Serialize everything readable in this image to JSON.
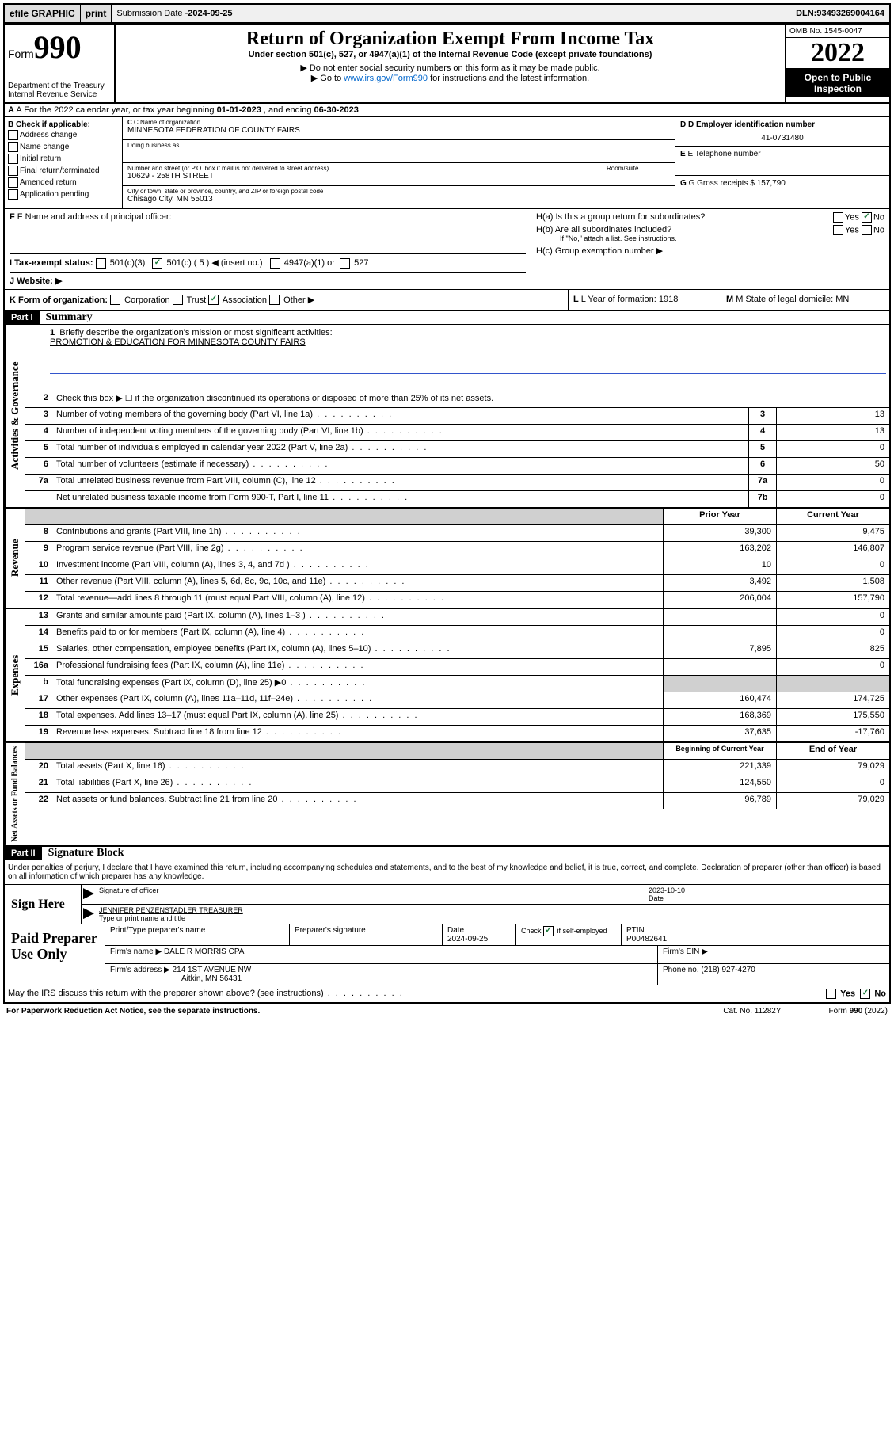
{
  "topbar": {
    "efile": "efile GRAPHIC",
    "print": "print",
    "sub_label": "Submission Date - ",
    "sub_date": "2024-09-25",
    "dln_label": "DLN: ",
    "dln": "93493269004164"
  },
  "header": {
    "form_word": "Form",
    "form_num": "990",
    "title": "Return of Organization Exempt From Income Tax",
    "sub1": "Under section 501(c), 527, or 4947(a)(1) of the Internal Revenue Code (except private foundations)",
    "sub2": "▶ Do not enter social security numbers on this form as it may be made public.",
    "sub3_pre": "▶ Go to ",
    "sub3_link": "www.irs.gov/Form990",
    "sub3_post": " for instructions and the latest information.",
    "omb": "OMB No. 1545-0047",
    "year": "2022",
    "open": "Open to Public Inspection",
    "dept": "Department of the Treasury",
    "irs": "Internal Revenue Service"
  },
  "sectionA": {
    "a_label": "A For the 2022 calendar year, or tax year beginning ",
    "a_begin": "01-01-2023",
    "a_mid": " , and ending ",
    "a_end": "06-30-2023",
    "b_label": "B Check if applicable:",
    "b_opts": [
      "Address change",
      "Name change",
      "Initial return",
      "Final return/terminated",
      "Amended return",
      "Application pending"
    ],
    "c_name_label": "C Name of organization",
    "c_name": "MINNESOTA FEDERATION OF COUNTY FAIRS",
    "c_dba": "Doing business as",
    "c_addr_label": "Number and street (or P.O. box if mail is not delivered to street address)",
    "c_room": "Room/suite",
    "c_addr": "10629 - 258TH STREET",
    "c_city_label": "City or town, state or province, country, and ZIP or foreign postal code",
    "c_city": "Chisago City, MN  55013",
    "d_label": "D Employer identification number",
    "d_ein": "41-0731480",
    "e_label": "E Telephone number",
    "g_label": "G Gross receipts $ ",
    "g_val": "157,790",
    "f_label": "F Name and address of principal officer:",
    "ha": "H(a) Is this a group return for subordinates?",
    "hb": "H(b) Are all subordinates included?",
    "hb_note": "If \"No,\" attach a list. See instructions.",
    "hc": "H(c) Group exemption number ▶",
    "yes": "Yes",
    "no": "No",
    "i_label": "I   Tax-exempt status:",
    "i_501c3": "501(c)(3)",
    "i_501c": "501(c) ( 5 ) ◀ (insert no.)",
    "i_4947": "4947(a)(1) or",
    "i_527": "527",
    "j_label": "J   Website: ▶",
    "k_label": "K Form of organization:",
    "k_corp": "Corporation",
    "k_trust": "Trust",
    "k_assoc": "Association",
    "k_other": "Other ▶",
    "l_label": "L Year of formation: ",
    "l_val": "1918",
    "m_label": "M State of legal domicile: ",
    "m_val": "MN"
  },
  "part1": {
    "header": "Part I",
    "title": "Summary",
    "line1_label": "Briefly describe the organization's mission or most significant activities:",
    "line1_val": "PROMOTION & EDUCATION FOR MINNESOTA COUNTY FAIRS",
    "line2": "Check this box ▶ ☐ if the organization discontinued its operations or disposed of more than 25% of its net assets.",
    "rows_gov": [
      {
        "n": "3",
        "label": "Number of voting members of the governing body (Part VI, line 1a)",
        "col": "3",
        "val": "13"
      },
      {
        "n": "4",
        "label": "Number of independent voting members of the governing body (Part VI, line 1b)",
        "col": "4",
        "val": "13"
      },
      {
        "n": "5",
        "label": "Total number of individuals employed in calendar year 2022 (Part V, line 2a)",
        "col": "5",
        "val": "0"
      },
      {
        "n": "6",
        "label": "Total number of volunteers (estimate if necessary)",
        "col": "6",
        "val": "50"
      },
      {
        "n": "7a",
        "label": "Total unrelated business revenue from Part VIII, column (C), line 12",
        "col": "7a",
        "val": "0"
      },
      {
        "n": "",
        "label": "Net unrelated business taxable income from Form 990-T, Part I, line 11",
        "col": "7b",
        "val": "0"
      }
    ],
    "prior_header": "Prior Year",
    "current_header": "Current Year",
    "rows_rev": [
      {
        "n": "8",
        "label": "Contributions and grants (Part VIII, line 1h)",
        "prior": "39,300",
        "curr": "9,475"
      },
      {
        "n": "9",
        "label": "Program service revenue (Part VIII, line 2g)",
        "prior": "163,202",
        "curr": "146,807"
      },
      {
        "n": "10",
        "label": "Investment income (Part VIII, column (A), lines 3, 4, and 7d )",
        "prior": "10",
        "curr": "0"
      },
      {
        "n": "11",
        "label": "Other revenue (Part VIII, column (A), lines 5, 6d, 8c, 9c, 10c, and 11e)",
        "prior": "3,492",
        "curr": "1,508"
      },
      {
        "n": "12",
        "label": "Total revenue—add lines 8 through 11 (must equal Part VIII, column (A), line 12)",
        "prior": "206,004",
        "curr": "157,790"
      }
    ],
    "rows_exp": [
      {
        "n": "13",
        "label": "Grants and similar amounts paid (Part IX, column (A), lines 1–3 )",
        "prior": "",
        "curr": "0"
      },
      {
        "n": "14",
        "label": "Benefits paid to or for members (Part IX, column (A), line 4)",
        "prior": "",
        "curr": "0"
      },
      {
        "n": "15",
        "label": "Salaries, other compensation, employee benefits (Part IX, column (A), lines 5–10)",
        "prior": "7,895",
        "curr": "825"
      },
      {
        "n": "16a",
        "label": "Professional fundraising fees (Part IX, column (A), line 11e)",
        "prior": "",
        "curr": "0"
      },
      {
        "n": "b",
        "label": "Total fundraising expenses (Part IX, column (D), line 25) ▶0",
        "prior": "shaded",
        "curr": "shaded"
      },
      {
        "n": "17",
        "label": "Other expenses (Part IX, column (A), lines 11a–11d, 11f–24e)",
        "prior": "160,474",
        "curr": "174,725"
      },
      {
        "n": "18",
        "label": "Total expenses. Add lines 13–17 (must equal Part IX, column (A), line 25)",
        "prior": "168,369",
        "curr": "175,550"
      },
      {
        "n": "19",
        "label": "Revenue less expenses. Subtract line 18 from line 12",
        "prior": "37,635",
        "curr": "-17,760"
      }
    ],
    "begin_header": "Beginning of Current Year",
    "end_header": "End of Year",
    "rows_net": [
      {
        "n": "20",
        "label": "Total assets (Part X, line 16)",
        "prior": "221,339",
        "curr": "79,029"
      },
      {
        "n": "21",
        "label": "Total liabilities (Part X, line 26)",
        "prior": "124,550",
        "curr": "0"
      },
      {
        "n": "22",
        "label": "Net assets or fund balances. Subtract line 21 from line 20",
        "prior": "96,789",
        "curr": "79,029"
      }
    ],
    "vert_gov": "Activities & Governance",
    "vert_rev": "Revenue",
    "vert_exp": "Expenses",
    "vert_net": "Net Assets or Fund Balances"
  },
  "part2": {
    "header": "Part II",
    "title": "Signature Block",
    "declare": "Under penalties of perjury, I declare that I have examined this return, including accompanying schedules and statements, and to the best of my knowledge and belief, it is true, correct, and complete. Declaration of preparer (other than officer) is based on all information of which preparer has any knowledge.",
    "sign_here": "Sign Here",
    "sig_officer": "Signature of officer",
    "sig_date_label": "Date",
    "sig_date": "2023-10-10",
    "sig_name": "JENNIFER PENZENSTADLER TREASURER",
    "sig_name_label": "Type or print name and title",
    "paid": "Paid Preparer Use Only",
    "prep_name_label": "Print/Type preparer's name",
    "prep_sig_label": "Preparer's signature",
    "prep_date_label": "Date",
    "prep_date": "2024-09-25",
    "prep_check": "Check ☑ if self-employed",
    "ptin_label": "PTIN",
    "ptin": "P00482641",
    "firm_name_label": "Firm's name    ▶ ",
    "firm_name": "DALE R MORRIS CPA",
    "firm_ein_label": "Firm's EIN ▶",
    "firm_addr_label": "Firm's address ▶ ",
    "firm_addr1": "214 1ST AVENUE NW",
    "firm_addr2": "Aitkin, MN  56431",
    "phone_label": "Phone no. ",
    "phone": "(218) 927-4270",
    "may_irs": "May the IRS discuss this return with the preparer shown above? (see instructions)"
  },
  "footer": {
    "paperwork": "For Paperwork Reduction Act Notice, see the separate instructions.",
    "cat": "Cat. No. 11282Y",
    "form": "Form 990 (2022)"
  }
}
